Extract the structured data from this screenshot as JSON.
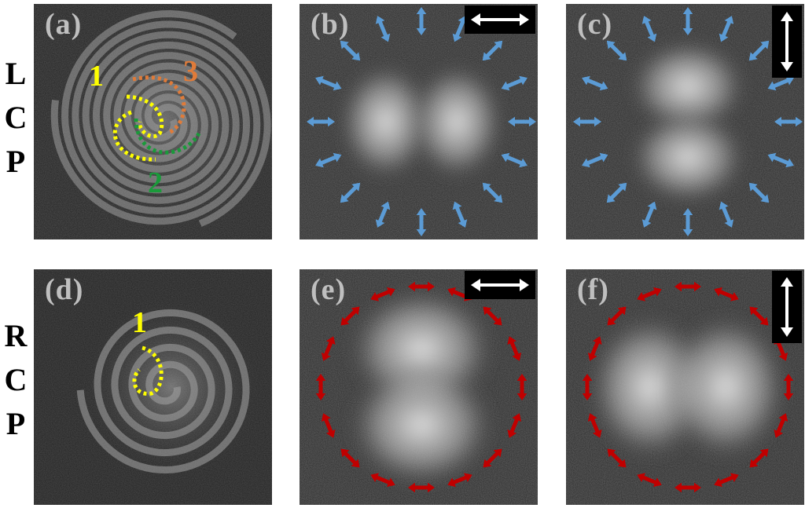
{
  "rows": [
    {
      "letters": [
        "L",
        "C",
        "P"
      ]
    },
    {
      "letters": [
        "R",
        "C",
        "P"
      ]
    }
  ],
  "panels": [
    {
      "label": "(a)",
      "content": "spiral",
      "arm_labels": [
        "1",
        "3",
        "2"
      ]
    },
    {
      "label": "(b)",
      "content": "lobes",
      "analyzer": "horizontal",
      "lobe_axis": "horizontal",
      "arrows": "radial",
      "arrow_color": "#5b9bd5"
    },
    {
      "label": "(c)",
      "content": "lobes",
      "analyzer": "vertical",
      "lobe_axis": "vertical",
      "arrows": "radial",
      "arrow_color": "#5b9bd5"
    },
    {
      "label": "(d)",
      "content": "spiral",
      "arm_labels": [
        "1"
      ]
    },
    {
      "label": "(e)",
      "content": "lobes",
      "analyzer": "horizontal",
      "lobe_axis": "vertical",
      "arrows": "azimuthal",
      "arrow_color": "#c00000"
    },
    {
      "label": "(f)",
      "content": "lobes",
      "analyzer": "vertical",
      "lobe_axis": "horizontal",
      "arrows": "azimuthal",
      "arrow_color": "#c00000"
    }
  ],
  "colors": {
    "label_gray": "#bfbfbf",
    "arm1_yellow": "#ffff00",
    "arm2_green": "#1a9a3a",
    "arm3_orange": "#e07b39",
    "blue_arrow": "#5b9bd5",
    "red_arrow": "#c00000"
  }
}
